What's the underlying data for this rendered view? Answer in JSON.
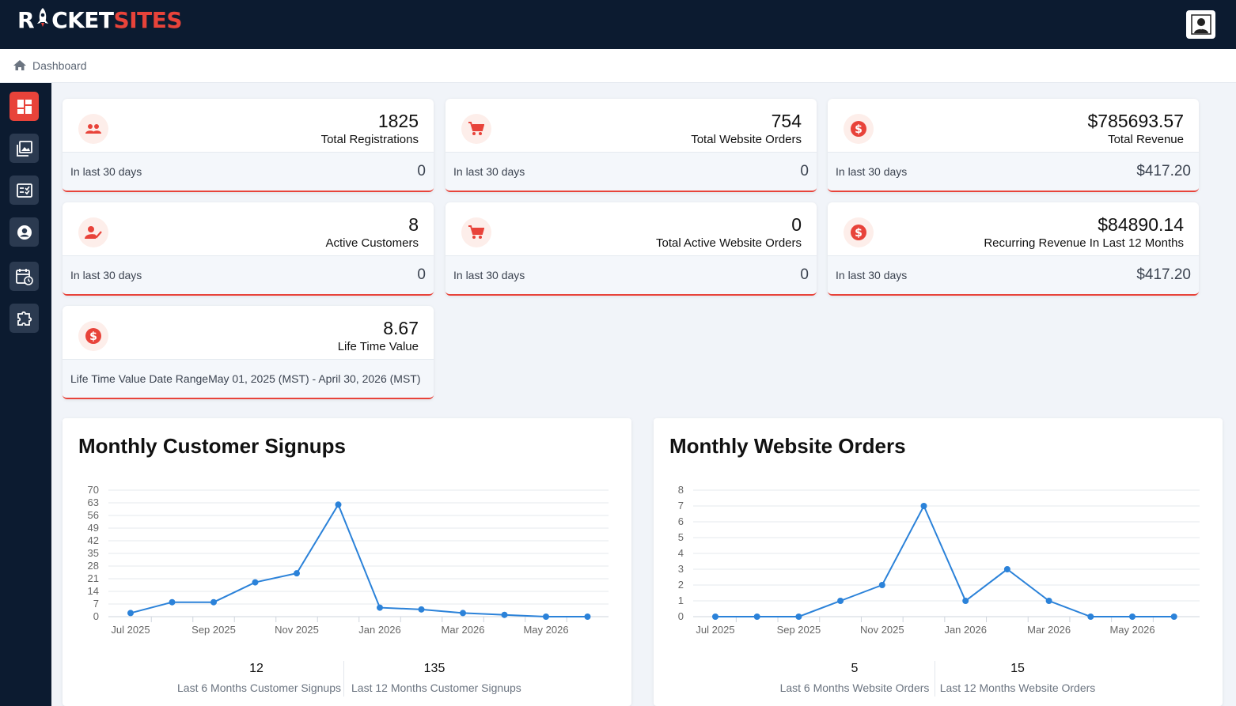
{
  "brand": {
    "part1": "R",
    "part2": "CKET",
    "part3": "SITES",
    "accent": "#e8433a",
    "navy": "#0c1b30"
  },
  "breadcrumb": {
    "label": "Dashboard"
  },
  "sidebar": {
    "items": [
      "dashboard-icon",
      "gallery-icon",
      "checklist-icon",
      "account-icon",
      "calendar-icon",
      "plugin-icon"
    ]
  },
  "cards": [
    {
      "value": "1825",
      "label": "Total Registrations",
      "sub_label": "In last 30 days",
      "sub_value": "0",
      "icon": "users-icon"
    },
    {
      "value": "754",
      "label": "Total Website Orders",
      "sub_label": "In last 30 days",
      "sub_value": "0",
      "icon": "cart-icon"
    },
    {
      "value": "$785693.57",
      "label": "Total Revenue",
      "sub_label": "In last 30 days",
      "sub_value": "$417.20",
      "icon": "dollar-icon"
    },
    {
      "value": "8",
      "label": "Active Customers",
      "sub_label": "In last 30 days",
      "sub_value": "0",
      "icon": "user-check-icon"
    },
    {
      "value": "0",
      "label": "Total Active Website Orders",
      "sub_label": "In last 30 days",
      "sub_value": "0",
      "icon": "cart-icon"
    },
    {
      "value": "$84890.14",
      "label": "Recurring Revenue In Last 12 Months",
      "sub_label": "In last 30 days",
      "sub_value": "$417.20",
      "icon": "dollar-icon"
    },
    {
      "value": "8.67",
      "label": "Life Time Value",
      "sub_label": "Life Time Value Date RangeMay 01, 2025 (MST) - April 30, 2026 (MST)",
      "sub_value": "",
      "icon": "dollar-icon"
    }
  ],
  "panels": [
    {
      "title": "Monthly Customer Signups",
      "stats": [
        {
          "num": "12",
          "cap": "Last 6 Months Customer Signups"
        },
        {
          "num": "135",
          "cap": "Last 12 Months Customer Signups"
        }
      ]
    },
    {
      "title": "Monthly Website Orders",
      "stats": [
        {
          "num": "5",
          "cap": "Last 6 Months Website Orders"
        },
        {
          "num": "15",
          "cap": "Last 12 Months Website Orders"
        }
      ]
    }
  ],
  "chart_data": [
    {
      "type": "line",
      "title": "Monthly Customer Signups",
      "x": [
        "Jul 2025",
        "Aug 2025",
        "Sep 2025",
        "Oct 2025",
        "Nov 2025",
        "Dec 2025",
        "Jan 2026",
        "Feb 2026",
        "Mar 2026",
        "Apr 2026",
        "May 2026",
        "Jun 2026"
      ],
      "x_tick_labels": [
        "Jul 2025",
        "Sep 2025",
        "Nov 2025",
        "Jan 2026",
        "Mar 2026",
        "May 2026"
      ],
      "values": [
        2,
        8,
        8,
        19,
        24,
        62,
        5,
        4,
        2,
        1,
        0,
        0
      ],
      "yticks": [
        0,
        7,
        14,
        21,
        28,
        35,
        42,
        49,
        56,
        63,
        70
      ],
      "ylim": [
        0,
        70
      ],
      "grid": true,
      "color": "#2b82d9"
    },
    {
      "type": "line",
      "title": "Monthly Website Orders",
      "x": [
        "Jul 2025",
        "Aug 2025",
        "Sep 2025",
        "Oct 2025",
        "Nov 2025",
        "Dec 2025",
        "Jan 2026",
        "Feb 2026",
        "Mar 2026",
        "Apr 2026",
        "May 2026",
        "Jun 2026"
      ],
      "x_tick_labels": [
        "Jul 2025",
        "Sep 2025",
        "Nov 2025",
        "Jan 2026",
        "Mar 2026",
        "May 2026"
      ],
      "values": [
        0,
        0,
        0,
        1,
        2,
        7,
        1,
        3,
        1,
        0,
        0,
        0
      ],
      "yticks": [
        0,
        1,
        2,
        3,
        4,
        5,
        6,
        7,
        8
      ],
      "ylim": [
        0,
        8
      ],
      "grid": true,
      "color": "#2b82d9"
    }
  ]
}
